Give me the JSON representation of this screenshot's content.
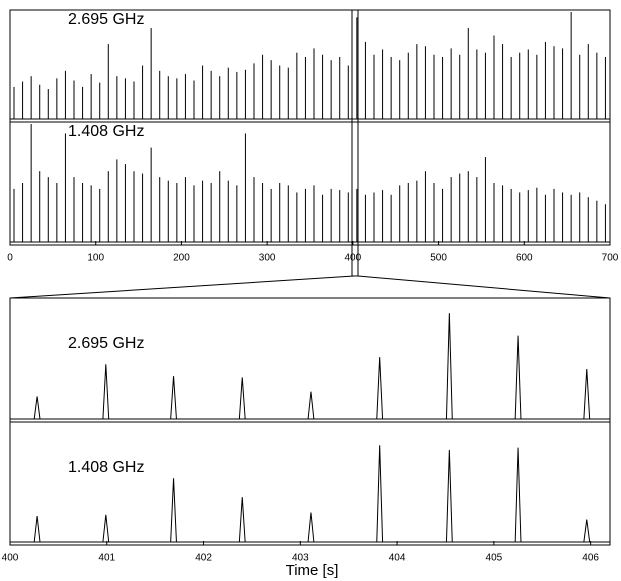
{
  "chart_data": [
    {
      "type": "spike",
      "label": "2.695 GHz",
      "color": "#000000",
      "xlim": [
        0,
        700
      ],
      "ylim": [
        0,
        100
      ],
      "x": [
        0,
        10,
        20,
        30,
        40,
        50,
        60,
        70,
        80,
        90,
        100,
        110,
        120,
        130,
        140,
        150,
        160,
        170,
        180,
        190,
        200,
        210,
        220,
        230,
        240,
        250,
        260,
        270,
        280,
        290,
        300,
        310,
        320,
        330,
        340,
        350,
        360,
        370,
        380,
        390,
        400,
        410,
        420,
        430,
        440,
        450,
        460,
        470,
        480,
        490,
        500,
        510,
        520,
        530,
        540,
        550,
        560,
        570,
        580,
        590,
        600,
        610,
        620,
        630,
        640,
        650,
        660,
        670,
        680,
        690
      ],
      "values": [
        30,
        35,
        40,
        32,
        28,
        38,
        45,
        36,
        30,
        42,
        34,
        70,
        40,
        38,
        35,
        50,
        85,
        45,
        40,
        38,
        42,
        36,
        50,
        45,
        40,
        48,
        44,
        46,
        52,
        60,
        55,
        50,
        48,
        62,
        58,
        66,
        60,
        55,
        58,
        50,
        95,
        72,
        60,
        65,
        58,
        55,
        62,
        70,
        68,
        60,
        58,
        66,
        60,
        85,
        65,
        62,
        78,
        70,
        58,
        62,
        65,
        60,
        72,
        68,
        66,
        100,
        60,
        70,
        62,
        58
      ]
    },
    {
      "type": "spike",
      "label": "1.408 GHz",
      "color": "#000000",
      "xlim": [
        0,
        700
      ],
      "ylim": [
        0,
        100
      ],
      "xticks": [
        0,
        100,
        200,
        300,
        400,
        500,
        600,
        700
      ],
      "x": [
        0,
        10,
        20,
        30,
        40,
        50,
        60,
        70,
        80,
        90,
        100,
        110,
        120,
        130,
        140,
        150,
        160,
        170,
        180,
        190,
        200,
        210,
        220,
        230,
        240,
        250,
        260,
        270,
        280,
        290,
        300,
        310,
        320,
        330,
        340,
        350,
        360,
        370,
        380,
        390,
        400,
        410,
        420,
        430,
        440,
        450,
        460,
        470,
        480,
        490,
        500,
        510,
        520,
        530,
        540,
        550,
        560,
        570,
        580,
        590,
        600,
        610,
        620,
        630,
        640,
        650,
        660,
        670,
        680,
        690
      ],
      "values": [
        45,
        50,
        100,
        60,
        55,
        50,
        92,
        55,
        50,
        48,
        45,
        60,
        70,
        66,
        60,
        58,
        80,
        55,
        52,
        50,
        55,
        48,
        52,
        50,
        60,
        52,
        48,
        92,
        55,
        50,
        45,
        50,
        48,
        42,
        45,
        48,
        40,
        45,
        44,
        42,
        45,
        40,
        42,
        44,
        40,
        48,
        50,
        52,
        60,
        50,
        45,
        55,
        58,
        60,
        55,
        72,
        50,
        48,
        45,
        42,
        44,
        46,
        40,
        45,
        42,
        40,
        42,
        38,
        35,
        32
      ]
    },
    {
      "type": "line",
      "label": "2.695 GHz",
      "color": "#000000",
      "xlim": [
        400,
        406.2
      ],
      "ylim": [
        0,
        100
      ],
      "x": [
        400.25,
        400.28,
        400.31,
        400.96,
        400.99,
        401.02,
        401.66,
        401.69,
        401.72,
        402.37,
        402.4,
        402.43,
        403.08,
        403.11,
        403.14,
        403.79,
        403.82,
        403.85,
        404.51,
        404.54,
        404.57,
        405.22,
        405.25,
        405.28,
        405.93,
        405.96,
        405.99
      ],
      "values": [
        0,
        19,
        0,
        0,
        46,
        0,
        0,
        36,
        0,
        0,
        35,
        0,
        0,
        23,
        0,
        0,
        52,
        0,
        0,
        89,
        0,
        0,
        70,
        0,
        0,
        42,
        0
      ]
    },
    {
      "type": "line",
      "label": "1.408 GHz",
      "color": "#000000",
      "xlim": [
        400,
        406.2
      ],
      "ylim": [
        0,
        100
      ],
      "xticks": [
        400,
        401,
        402,
        403,
        404,
        405,
        406
      ],
      "xlabel": "Time [s]",
      "x": [
        400.25,
        400.28,
        400.31,
        400.96,
        400.99,
        401.02,
        401.66,
        401.69,
        401.72,
        402.37,
        402.4,
        402.43,
        403.08,
        403.11,
        403.14,
        403.79,
        403.82,
        403.85,
        404.51,
        404.54,
        404.57,
        405.22,
        405.25,
        405.28,
        405.93,
        405.96,
        405.99
      ],
      "values": [
        0,
        22,
        0,
        0,
        23,
        0,
        0,
        54,
        0,
        0,
        38,
        0,
        0,
        25,
        0,
        0,
        82,
        0,
        0,
        78,
        0,
        0,
        80,
        0,
        0,
        19,
        0
      ]
    }
  ]
}
